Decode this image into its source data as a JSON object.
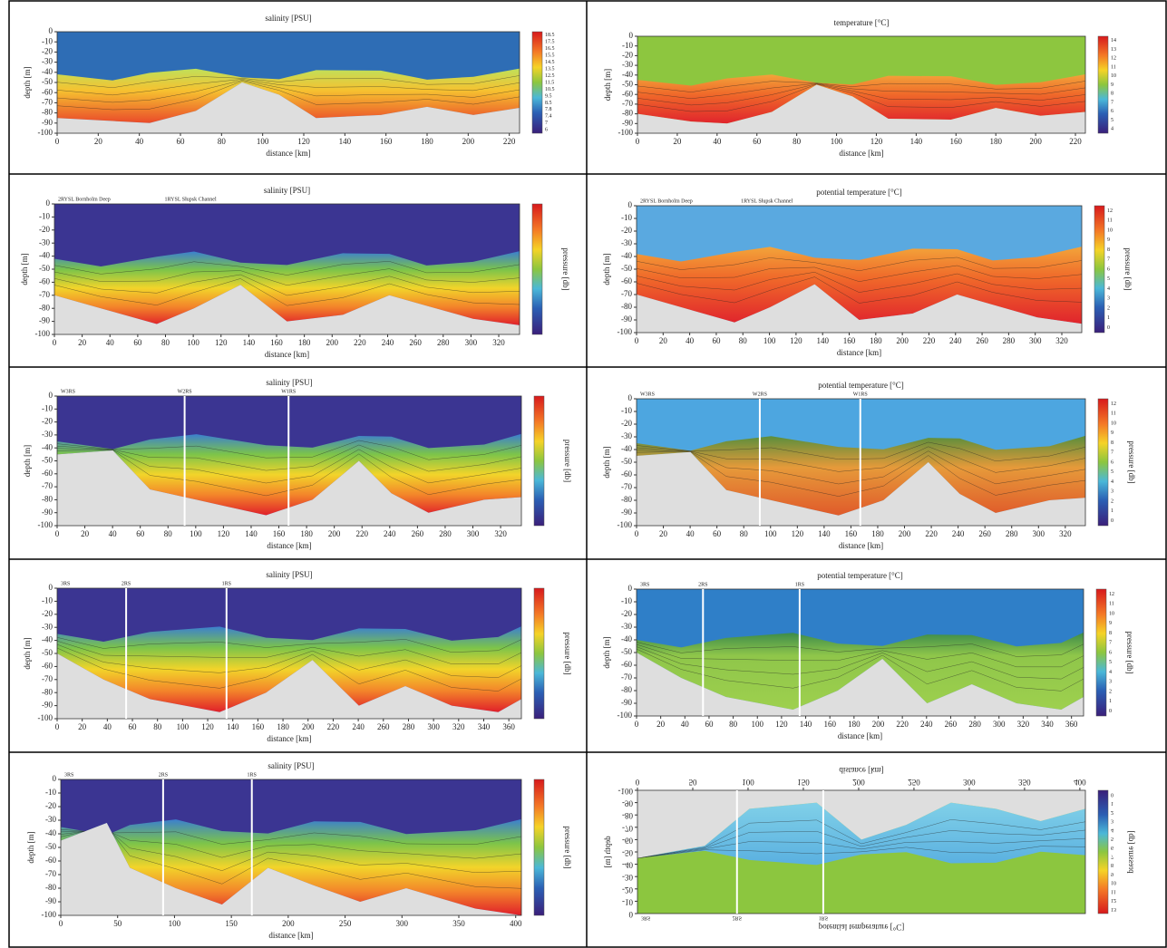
{
  "chart_data": [
    {
      "type": "contour",
      "title": "salinity [PSU]",
      "x_label": "distance [km]",
      "y_label": "depth [m]",
      "xlim": [
        0,
        225
      ],
      "xticks": [
        0,
        20,
        40,
        60,
        80,
        100,
        120,
        140,
        160,
        180,
        200,
        220
      ],
      "ylim": [
        -100,
        0
      ],
      "yticks": [
        0,
        -10,
        -20,
        -30,
        -40,
        -50,
        -60,
        -70,
        -80,
        -90,
        -100
      ],
      "colorbar_levels": [
        18.5,
        17.5,
        16.5,
        15.5,
        14.5,
        13.5,
        12.5,
        11.5,
        10.5,
        9.5,
        8.5,
        7.8,
        7.4,
        7.0,
        6.0
      ]
    },
    {
      "type": "contour",
      "title": "temperature [°C]",
      "x_label": "distance [km]",
      "y_label": "depth [m]",
      "xlim": [
        0,
        225
      ],
      "xticks": [
        0,
        20,
        40,
        60,
        80,
        100,
        120,
        140,
        160,
        180,
        200,
        220
      ],
      "ylim": [
        -100,
        0
      ],
      "yticks": [
        0,
        -10,
        -20,
        -30,
        -40,
        -50,
        -60,
        -70,
        -80,
        -90,
        -100
      ],
      "colorbar_levels": [
        14,
        13,
        12,
        11,
        10,
        9,
        8,
        7,
        6,
        5,
        4
      ]
    },
    {
      "type": "contour",
      "title": "salinity [PSU]",
      "x_label": "distance [km]",
      "y_label": "depth [m]",
      "colorbar_label": "pressure [db]",
      "xlim": [
        0,
        335
      ],
      "xticks": [
        0,
        20,
        40,
        60,
        80,
        100,
        120,
        140,
        160,
        180,
        200,
        220,
        240,
        260,
        280,
        300,
        320
      ],
      "ylim": [
        -100,
        0
      ],
      "yticks": [
        0,
        -10,
        -20,
        -30,
        -40,
        -50,
        -60,
        -70,
        -80,
        -90,
        -100
      ],
      "stations": [
        {
          "label": "2RYSL Bornholm Deep",
          "x": 0
        },
        {
          "label": "1RYSL Słupsk Channel",
          "x": 98
        }
      ]
    },
    {
      "type": "contour",
      "title": "potential temperature [°C]",
      "x_label": "distance [km]",
      "y_label": "depth [m]",
      "colorbar_label": "pressure [db]",
      "xlim": [
        0,
        335
      ],
      "xticks": [
        0,
        20,
        40,
        60,
        80,
        100,
        120,
        140,
        160,
        180,
        200,
        220,
        240,
        260,
        280,
        300,
        320
      ],
      "ylim": [
        -100,
        0
      ],
      "yticks": [
        0,
        -10,
        -20,
        -30,
        -40,
        -50,
        -60,
        -70,
        -80,
        -90,
        -100
      ],
      "colorbar_levels": [
        12,
        11,
        10,
        9,
        8,
        7,
        6,
        5,
        4,
        3,
        2,
        1,
        0
      ],
      "stations": [
        {
          "label": "2RYSL Bornholm Deep",
          "x": 0
        },
        {
          "label": "1RYSL Słupsk Channel",
          "x": 98
        }
      ]
    },
    {
      "type": "contour",
      "title": "salinity [PSU]",
      "x_label": "distance [km]",
      "y_label": "depth [m]",
      "colorbar_label": "pressure [db]",
      "xlim": [
        0,
        335
      ],
      "xticks": [
        0,
        20,
        40,
        60,
        80,
        100,
        120,
        140,
        160,
        180,
        200,
        220,
        240,
        260,
        280,
        300,
        320
      ],
      "ylim": [
        -100,
        0
      ],
      "yticks": [
        0,
        -10,
        -20,
        -30,
        -40,
        -50,
        -60,
        -70,
        -80,
        -90,
        -100
      ],
      "stations": [
        {
          "label": "W3RS",
          "x": 0
        },
        {
          "label": "W2RS",
          "x": 92,
          "line": true
        },
        {
          "label": "W1RS",
          "x": 167,
          "line": true
        }
      ]
    },
    {
      "type": "contour",
      "title": "potential temperature [°C]",
      "x_label": "distance [km]",
      "y_label": "depth [m]",
      "colorbar_label": "pressure [db]",
      "xlim": [
        0,
        335
      ],
      "xticks": [
        0,
        20,
        40,
        60,
        80,
        100,
        120,
        140,
        160,
        180,
        200,
        220,
        240,
        260,
        280,
        300,
        320
      ],
      "ylim": [
        -100,
        0
      ],
      "yticks": [
        0,
        -10,
        -20,
        -30,
        -40,
        -50,
        -60,
        -70,
        -80,
        -90,
        -100
      ],
      "colorbar_levels": [
        12,
        11,
        10,
        9,
        8,
        7,
        6,
        5,
        4,
        3,
        2,
        1,
        0
      ],
      "stations": [
        {
          "label": "W3RS",
          "x": 0
        },
        {
          "label": "W2RS",
          "x": 92,
          "line": true
        },
        {
          "label": "W1RS",
          "x": 167,
          "line": true
        }
      ]
    },
    {
      "type": "contour",
      "title": "salinity [PSU]",
      "x_label": "distance [km]",
      "y_label": "depth [m]",
      "colorbar_label": "pressure [db]",
      "xlim": [
        0,
        370
      ],
      "xticks": [
        0,
        20,
        40,
        60,
        80,
        100,
        120,
        140,
        160,
        180,
        200,
        220,
        240,
        260,
        280,
        300,
        320,
        340,
        360
      ],
      "ylim": [
        -100,
        0
      ],
      "yticks": [
        0,
        -10,
        -20,
        -30,
        -40,
        -50,
        -60,
        -70,
        -80,
        -90,
        -100
      ],
      "stations": [
        {
          "label": "3RS",
          "x": 0
        },
        {
          "label": "2RS",
          "x": 55,
          "line": true
        },
        {
          "label": "1RS",
          "x": 135,
          "line": true
        }
      ]
    },
    {
      "type": "contour",
      "title": "potential temperature [°C]",
      "x_label": "distance [km]",
      "y_label": "depth [m]",
      "colorbar_label": "pressure [db]",
      "xlim": [
        0,
        370
      ],
      "xticks": [
        0,
        20,
        40,
        60,
        80,
        100,
        120,
        140,
        160,
        180,
        200,
        220,
        240,
        260,
        280,
        300,
        320,
        340,
        360
      ],
      "ylim": [
        -100,
        0
      ],
      "yticks": [
        0,
        -10,
        -20,
        -30,
        -40,
        -50,
        -60,
        -70,
        -80,
        -90,
        -100
      ],
      "colorbar_levels": [
        12,
        11,
        10,
        9,
        8,
        7,
        6,
        5,
        4,
        3,
        2,
        1,
        0
      ],
      "stations": [
        {
          "label": "3RS",
          "x": 0
        },
        {
          "label": "2RS",
          "x": 55,
          "line": true
        },
        {
          "label": "1RS",
          "x": 135,
          "line": true
        }
      ]
    },
    {
      "type": "contour",
      "title": "salinity [PSU]",
      "x_label": "distance [km]",
      "y_label": "depth [m]",
      "colorbar_label": "pressure [db]",
      "xlim": [
        0,
        405
      ],
      "xticks": [
        0,
        50,
        100,
        150,
        200,
        250,
        300,
        350,
        400
      ],
      "ylim": [
        -100,
        0
      ],
      "yticks": [
        0,
        -10,
        -20,
        -30,
        -40,
        -50,
        -60,
        -70,
        -80,
        -90,
        -100
      ],
      "stations": [
        {
          "label": "3RS",
          "x": 0
        },
        {
          "label": "2RS",
          "x": 90,
          "line": true
        },
        {
          "label": "1RS",
          "x": 168,
          "line": true
        }
      ]
    },
    {
      "type": "contour",
      "flipped": true,
      "title": "potential temperature [°C]",
      "x_label": "distance [km]",
      "y_label": "depth [m]",
      "colorbar_label": "pressure [db]",
      "xlim": [
        0,
        405
      ],
      "xticks": [
        0,
        50,
        100,
        150,
        200,
        250,
        300,
        350,
        400
      ],
      "ylim": [
        -100,
        0
      ],
      "yticks": [
        0,
        -10,
        -20,
        -30,
        -40,
        -50,
        -60,
        -70,
        -80,
        -90,
        -100
      ],
      "colorbar_levels": [
        13,
        12,
        11,
        10,
        9,
        8,
        7,
        6,
        5,
        4,
        3,
        2,
        1,
        0
      ],
      "stations": [
        {
          "label": "3RS",
          "x": 0
        },
        {
          "label": "2RS",
          "x": 90,
          "line": true
        },
        {
          "label": "1RS",
          "x": 168,
          "line": true
        }
      ]
    }
  ]
}
